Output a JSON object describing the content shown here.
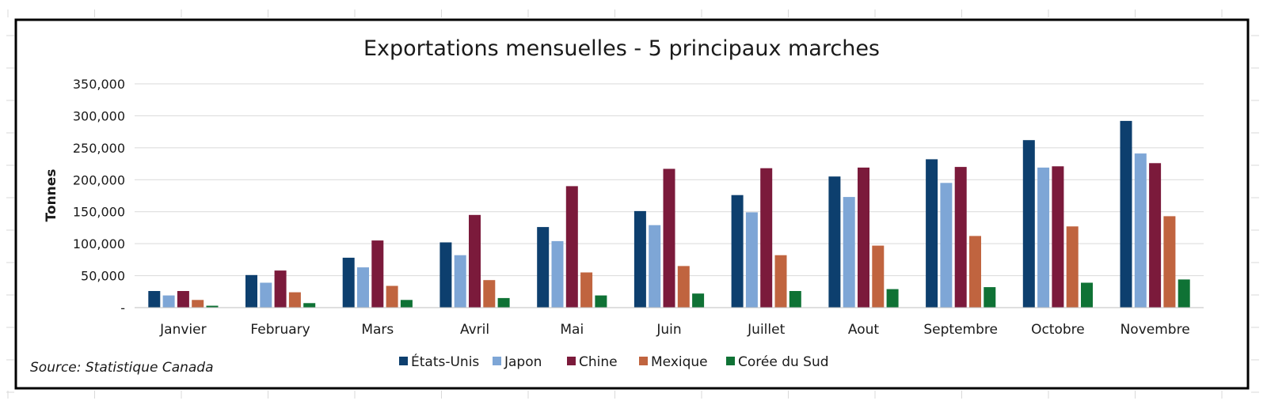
{
  "chart_data": {
    "type": "bar",
    "title": "Exportations mensuelles - 5 principaux marches",
    "xlabel": "",
    "ylabel": "Tonnes",
    "ylim": [
      0,
      350000
    ],
    "yticks": [
      0,
      50000,
      100000,
      150000,
      200000,
      250000,
      300000,
      350000
    ],
    "ytick_labels": [
      "-",
      "50,000",
      "100,000",
      "150,000",
      "200,000",
      "250,000",
      "300,000",
      "350,000"
    ],
    "grid": true,
    "legend": "bottom",
    "source": "Source: Statistique Canada",
    "categories": [
      "Janvier",
      "February",
      "Mars",
      "Avril",
      "Mai",
      "Juin",
      "Juillet",
      "Aout",
      "Septembre",
      "Octobre",
      "Novembre"
    ],
    "series": [
      {
        "name": "États-Unis",
        "color": "#0d3f6e",
        "values": [
          26000,
          51000,
          78000,
          102000,
          126000,
          151000,
          176000,
          205000,
          232000,
          262000,
          292000
        ]
      },
      {
        "name": "Japon",
        "color": "#7ea6d6",
        "values": [
          19000,
          39000,
          63000,
          82000,
          104000,
          129000,
          149000,
          173000,
          195000,
          219000,
          241000
        ]
      },
      {
        "name": "Chine",
        "color": "#7b1a3b",
        "values": [
          26000,
          58000,
          105000,
          145000,
          190000,
          217000,
          218000,
          219000,
          220000,
          221000,
          226000
        ]
      },
      {
        "name": "Mexique",
        "color": "#c0643f",
        "values": [
          12000,
          24000,
          34000,
          43000,
          55000,
          65000,
          82000,
          97000,
          112000,
          127000,
          143000
        ]
      },
      {
        "name": "Corée du Sud",
        "color": "#0f7235",
        "values": [
          3000,
          7000,
          12000,
          15000,
          19000,
          22000,
          26000,
          29000,
          32000,
          39000,
          44000
        ]
      }
    ]
  }
}
